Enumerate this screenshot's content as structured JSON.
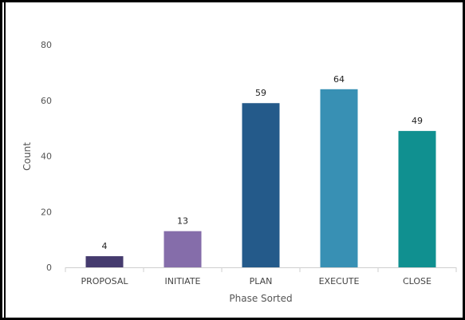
{
  "chart_data": {
    "type": "bar",
    "categories": [
      "PROPOSAL",
      "INITIATE",
      "PLAN",
      "EXECUTE",
      "CLOSE"
    ],
    "values": [
      4,
      13,
      59,
      64,
      49
    ],
    "data_labels": [
      "4",
      "13",
      "59",
      "64",
      "49"
    ],
    "colors": [
      "#453b6e",
      "#856daa",
      "#245a8a",
      "#3890b4",
      "#109090"
    ],
    "title": "",
    "xlabel": "Phase Sorted",
    "ylabel": "Count",
    "ylim": [
      0,
      80
    ],
    "yticks": [
      0,
      20,
      40,
      60,
      80
    ],
    "grid": false,
    "legend": "none"
  }
}
